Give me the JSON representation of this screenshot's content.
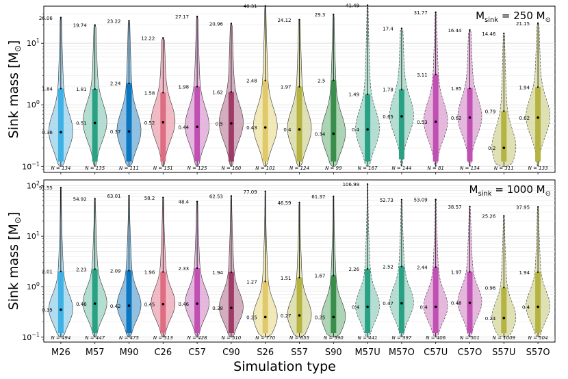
{
  "chart_data": [
    {
      "type": "violin",
      "title": "M",
      "title_sub": "sink",
      "title_value": " = 250 M",
      "title_unit": "⊙",
      "ylabel": "Sink mass [M",
      "ylabel_unit": "⊙",
      "yscale": "log",
      "ylim": [
        0.08,
        40
      ],
      "yticks": [
        {
          "value": 0.1,
          "label": "10",
          "exp": "−1"
        },
        {
          "value": 1,
          "label": "10",
          "exp": "0"
        },
        {
          "value": 10,
          "label": "10",
          "exp": "1"
        }
      ],
      "categories": [
        "M26",
        "M57",
        "M90",
        "C26",
        "C57",
        "C90",
        "S26",
        "S57",
        "S90",
        "M57U",
        "M57O",
        "C57U",
        "C57O",
        "S57U",
        "S57O"
      ],
      "max": [
        26.06,
        19.74,
        23.22,
        12.22,
        27.17,
        20.96,
        40.31,
        24.12,
        29.3,
        41.49,
        17.4,
        31.77,
        16.44,
        14.46,
        21.15
      ],
      "upper": [
        1.84,
        1.81,
        2.24,
        1.58,
        1.98,
        1.62,
        2.48,
        1.97,
        2.5,
        1.49,
        1.78,
        3.11,
        1.85,
        0.79,
        1.94
      ],
      "median": [
        0.36,
        0.51,
        0.37,
        0.52,
        0.44,
        0.5,
        0.43,
        0.4,
        0.34,
        0.4,
        0.65,
        0.53,
        0.62,
        0.2,
        0.62
      ],
      "n": [
        "N = 134",
        "N = 135",
        "N = 111",
        "N = 151",
        "N = 125",
        "N = 160",
        "N = 101",
        "N = 124",
        "N = 99",
        "N = 167",
        "N = 144",
        "N = 81",
        "N = 134",
        "N = 311",
        "N = 133"
      ]
    },
    {
      "type": "violin",
      "title": "M",
      "title_sub": "sink",
      "title_value": " = 1000 M",
      "title_unit": "⊙",
      "ylabel": "Sink mass [M",
      "ylabel_unit": "⊙",
      "yscale": "log",
      "ylim": [
        0.08,
        130
      ],
      "yticks": [
        {
          "value": 0.1,
          "label": "10",
          "exp": "−1"
        },
        {
          "value": 1,
          "label": "10",
          "exp": "0"
        },
        {
          "value": 10,
          "label": "10",
          "exp": "1"
        },
        {
          "value": 100,
          "label": "10",
          "exp": "2"
        }
      ],
      "categories": [
        "M26",
        "M57",
        "M90",
        "C26",
        "C57",
        "C90",
        "S26",
        "S57",
        "S90",
        "M57U",
        "M57O",
        "C57U",
        "C57O",
        "S57U",
        "S57O"
      ],
      "max": [
        91.55,
        54.92,
        63.01,
        58.2,
        48.4,
        62.53,
        77.09,
        46.59,
        61.37,
        106.99,
        52.73,
        53.09,
        38.57,
        25.26,
        37.95
      ],
      "upper": [
        2.01,
        2.23,
        2.09,
        1.96,
        2.33,
        1.94,
        1.27,
        1.51,
        1.67,
        2.26,
        2.52,
        2.44,
        1.97,
        0.96,
        1.94
      ],
      "median": [
        0.35,
        0.46,
        0.42,
        0.45,
        0.46,
        0.38,
        0.25,
        0.27,
        0.25,
        0.4,
        0.47,
        0.4,
        0.48,
        0.24,
        0.4
      ],
      "n": [
        "N = 494",
        "N = 447",
        "N = 475",
        "N = 513",
        "N = 428",
        "N = 510",
        "N = 770",
        "N = 655",
        "N = 590",
        "N = 441",
        "N = 397",
        "N = 406",
        "N = 501",
        "N = 1009",
        "N = 504"
      ]
    }
  ],
  "xlabel": "Simulation type",
  "colors": {
    "fill": [
      "#9fd3ec",
      "#a3d6c7",
      "#74b2dc",
      "#eeaab8",
      "#dea6d6",
      "#c99aae",
      "#efe3a8",
      "#d8d8a2",
      "#97c9a3",
      "#a3d6c7",
      "#a3d6c7",
      "#dea6d6",
      "#dea6d6",
      "#d8d8a2",
      "#d8d8a2"
    ],
    "box": [
      "#3eb1e5",
      "#2aa084",
      "#0c76c0",
      "#dd6d82",
      "#c051b3",
      "#9e3c68",
      "#e0c96a",
      "#b5b341",
      "#3a8d4a",
      "#2aa084",
      "#2aa084",
      "#c051b3",
      "#c051b3",
      "#b5b341",
      "#b5b341"
    ],
    "dashed": [
      false,
      false,
      false,
      false,
      false,
      false,
      false,
      false,
      false,
      true,
      true,
      true,
      true,
      true,
      true
    ]
  }
}
